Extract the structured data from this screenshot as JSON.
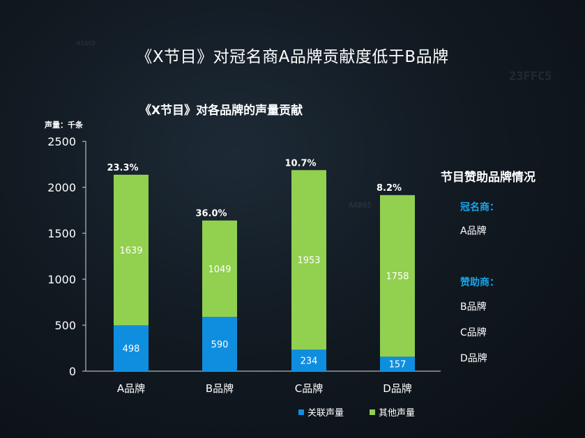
{
  "header": {
    "title": "《X节目》对冠名商A品牌贡献度低于B品牌"
  },
  "chart_data": {
    "type": "bar",
    "stacked": true,
    "title": "《X节目》对各品牌的声量贡献",
    "ylabel": "声量：千条",
    "categories": [
      "A品牌",
      "B品牌",
      "C品牌",
      "D品牌"
    ],
    "series": [
      {
        "name": "关联声量",
        "values": [
          498,
          590,
          234,
          157
        ],
        "color": "#0f8ee0"
      },
      {
        "name": "其他声量",
        "values": [
          1639,
          1049,
          1953,
          1758
        ],
        "color": "#92d050"
      }
    ],
    "top_labels": [
      "23.3%",
      "36.0%",
      "10.7%",
      "8.2%"
    ],
    "ylim": [
      0,
      2500
    ],
    "yticks": [
      0,
      500,
      1000,
      1500,
      2000,
      2500
    ],
    "grid": false,
    "legend": "bottom"
  },
  "sidebar": {
    "title": "节目赞助品牌情况",
    "title_sponsor_label": "冠名商：",
    "title_sponsors": [
      "A品牌"
    ],
    "sponsor_label": "赞助商：",
    "sponsors": [
      "B品牌",
      "C品牌",
      "D品牌"
    ]
  },
  "legend": {
    "items": [
      {
        "label": "关联声量",
        "color": "#0f8ee0"
      },
      {
        "label": "其他声量",
        "color": "#92d050"
      }
    ]
  }
}
